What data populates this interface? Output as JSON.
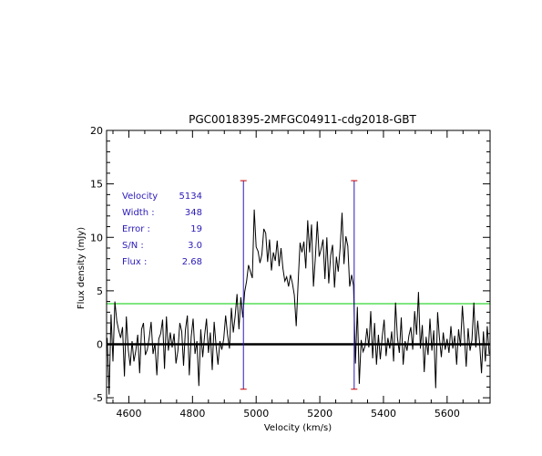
{
  "chart_data": {
    "type": "line",
    "title": "PGC0018395-2MFGC04911-cdg2018-GBT",
    "xlabel": "Velocity (km/s)",
    "ylabel": "Flux density (mJy)",
    "xlim": [
      4530,
      5735
    ],
    "ylim": [
      -5.5,
      20
    ],
    "xticks": [
      4600,
      4800,
      5000,
      5200,
      5400,
      5600
    ],
    "yticks": [
      -5,
      0,
      5,
      10,
      15,
      20
    ],
    "grid": false,
    "info_labels": [
      "Velocity",
      "Width :",
      "Error :",
      "S/N :",
      "Flux :"
    ],
    "info_values": [
      "5134",
      "348",
      "19",
      "3.0",
      "2.68"
    ],
    "reference_lines": {
      "zero_level": 0,
      "noise_level": 3.8,
      "noise_color": "#00cc00",
      "zero_color": "#000000"
    },
    "markers": {
      "color": "#2a1ab8",
      "cap_color": "#cc0000",
      "lines": [
        {
          "x": 4960,
          "y_top": 15.3,
          "y_bottom": -4.2
        },
        {
          "x": 5308,
          "y_top": 15.3,
          "y_bottom": -4.2
        }
      ]
    },
    "spectrum": [
      [
        4532,
        0.6
      ],
      [
        4538,
        -4.7
      ],
      [
        4544,
        2.8
      ],
      [
        4550,
        -1.6
      ],
      [
        4556,
        4.0
      ],
      [
        4562,
        2.2
      ],
      [
        4568,
        1.3
      ],
      [
        4574,
        0.6
      ],
      [
        4580,
        1.6
      ],
      [
        4586,
        -3.0
      ],
      [
        4592,
        2.6
      ],
      [
        4598,
        -0.5
      ],
      [
        4604,
        -2.0
      ],
      [
        4610,
        0.3
      ],
      [
        4616,
        -1.6
      ],
      [
        4622,
        -0.6
      ],
      [
        4628,
        0.9
      ],
      [
        4634,
        -2.7
      ],
      [
        4640,
        1.4
      ],
      [
        4646,
        2.0
      ],
      [
        4652,
        -1.0
      ],
      [
        4658,
        -0.5
      ],
      [
        4664,
        0.6
      ],
      [
        4670,
        2.1
      ],
      [
        4676,
        -0.9
      ],
      [
        4682,
        0.1
      ],
      [
        4688,
        -2.9
      ],
      [
        4694,
        0.5
      ],
      [
        4700,
        1.0
      ],
      [
        4706,
        2.3
      ],
      [
        4712,
        -2.3
      ],
      [
        4718,
        2.6
      ],
      [
        4724,
        -0.6
      ],
      [
        4730,
        1.1
      ],
      [
        4736,
        -0.3
      ],
      [
        4742,
        1.0
      ],
      [
        4748,
        -1.8
      ],
      [
        4754,
        -0.6
      ],
      [
        4760,
        2.0
      ],
      [
        4766,
        1.2
      ],
      [
        4772,
        -2.0
      ],
      [
        4778,
        1.4
      ],
      [
        4784,
        2.7
      ],
      [
        4790,
        -2.9
      ],
      [
        4796,
        0.7
      ],
      [
        4802,
        2.4
      ],
      [
        4808,
        -0.9
      ],
      [
        4814,
        0.3
      ],
      [
        4820,
        -3.9
      ],
      [
        4826,
        1.4
      ],
      [
        4832,
        -1.2
      ],
      [
        4838,
        0.8
      ],
      [
        4844,
        2.4
      ],
      [
        4850,
        -0.8
      ],
      [
        4856,
        1.1
      ],
      [
        4862,
        -2.4
      ],
      [
        4868,
        2.1
      ],
      [
        4874,
        -0.1
      ],
      [
        4880,
        -1.9
      ],
      [
        4886,
        0.3
      ],
      [
        4892,
        -0.5
      ],
      [
        4898,
        0.5
      ],
      [
        4904,
        2.7
      ],
      [
        4910,
        0.9
      ],
      [
        4916,
        -0.4
      ],
      [
        4922,
        3.4
      ],
      [
        4928,
        1.1
      ],
      [
        4934,
        2.6
      ],
      [
        4940,
        4.7
      ],
      [
        4946,
        1.4
      ],
      [
        4952,
        4.4
      ],
      [
        4958,
        2.5
      ],
      [
        4964,
        4.9
      ],
      [
        4970,
        5.9
      ],
      [
        4976,
        7.4
      ],
      [
        4982,
        6.8
      ],
      [
        4988,
        6.2
      ],
      [
        4994,
        12.6
      ],
      [
        5000,
        9.1
      ],
      [
        5006,
        8.7
      ],
      [
        5012,
        7.6
      ],
      [
        5018,
        8.4
      ],
      [
        5024,
        10.8
      ],
      [
        5030,
        10.4
      ],
      [
        5036,
        7.7
      ],
      [
        5042,
        9.8
      ],
      [
        5048,
        6.9
      ],
      [
        5054,
        8.6
      ],
      [
        5060,
        7.8
      ],
      [
        5066,
        9.7
      ],
      [
        5072,
        7.3
      ],
      [
        5078,
        9.0
      ],
      [
        5084,
        7.1
      ],
      [
        5090,
        5.9
      ],
      [
        5096,
        6.3
      ],
      [
        5102,
        5.4
      ],
      [
        5108,
        6.5
      ],
      [
        5114,
        5.7
      ],
      [
        5120,
        4.6
      ],
      [
        5126,
        1.7
      ],
      [
        5132,
        5.8
      ],
      [
        5138,
        9.5
      ],
      [
        5144,
        8.6
      ],
      [
        5150,
        9.6
      ],
      [
        5156,
        7.1
      ],
      [
        5162,
        11.6
      ],
      [
        5168,
        8.6
      ],
      [
        5174,
        11.2
      ],
      [
        5180,
        5.4
      ],
      [
        5186,
        8.1
      ],
      [
        5192,
        11.5
      ],
      [
        5198,
        8.2
      ],
      [
        5204,
        8.9
      ],
      [
        5210,
        9.8
      ],
      [
        5216,
        6.1
      ],
      [
        5222,
        10.0
      ],
      [
        5228,
        5.7
      ],
      [
        5234,
        8.3
      ],
      [
        5240,
        9.3
      ],
      [
        5246,
        5.3
      ],
      [
        5252,
        8.2
      ],
      [
        5258,
        6.8
      ],
      [
        5264,
        9.0
      ],
      [
        5270,
        12.3
      ],
      [
        5276,
        7.5
      ],
      [
        5282,
        10.1
      ],
      [
        5288,
        9.2
      ],
      [
        5294,
        5.4
      ],
      [
        5300,
        6.5
      ],
      [
        5306,
        5.5
      ],
      [
        5312,
        -1.8
      ],
      [
        5318,
        3.5
      ],
      [
        5324,
        -3.7
      ],
      [
        5330,
        0.4
      ],
      [
        5336,
        -0.7
      ],
      [
        5342,
        -0.2
      ],
      [
        5348,
        1.5
      ],
      [
        5354,
        -0.3
      ],
      [
        5360,
        3.1
      ],
      [
        5366,
        -1.3
      ],
      [
        5372,
        2.0
      ],
      [
        5378,
        -1.9
      ],
      [
        5384,
        0.9
      ],
      [
        5390,
        -1.4
      ],
      [
        5396,
        0.7
      ],
      [
        5402,
        2.3
      ],
      [
        5408,
        -1.1
      ],
      [
        5414,
        0.6
      ],
      [
        5420,
        -0.4
      ],
      [
        5426,
        1.2
      ],
      [
        5432,
        -1.6
      ],
      [
        5438,
        3.9
      ],
      [
        5444,
        0.6
      ],
      [
        5450,
        -0.8
      ],
      [
        5456,
        2.5
      ],
      [
        5462,
        -1.9
      ],
      [
        5468,
        0.3
      ],
      [
        5474,
        -0.6
      ],
      [
        5480,
        0.8
      ],
      [
        5486,
        1.6
      ],
      [
        5492,
        -0.5
      ],
      [
        5498,
        3.1
      ],
      [
        5504,
        0.9
      ],
      [
        5510,
        4.9
      ],
      [
        5516,
        -0.4
      ],
      [
        5522,
        1.8
      ],
      [
        5528,
        -2.6
      ],
      [
        5534,
        0.7
      ],
      [
        5540,
        -1.0
      ],
      [
        5546,
        2.4
      ],
      [
        5552,
        -0.6
      ],
      [
        5558,
        1.3
      ],
      [
        5564,
        -4.1
      ],
      [
        5570,
        3.0
      ],
      [
        5576,
        0.6
      ],
      [
        5582,
        -1.2
      ],
      [
        5588,
        1.1
      ],
      [
        5594,
        -0.5
      ],
      [
        5600,
        0.5
      ],
      [
        5606,
        -0.8
      ],
      [
        5612,
        1.7
      ],
      [
        5618,
        -0.4
      ],
      [
        5624,
        0.8
      ],
      [
        5630,
        -1.9
      ],
      [
        5636,
        1.4
      ],
      [
        5642,
        -0.2
      ],
      [
        5648,
        3.6
      ],
      [
        5654,
        0.9
      ],
      [
        5660,
        -2.1
      ],
      [
        5666,
        1.5
      ],
      [
        5672,
        -0.6
      ],
      [
        5678,
        0.4
      ],
      [
        5684,
        3.9
      ],
      [
        5690,
        -0.3
      ],
      [
        5696,
        2.2
      ],
      [
        5702,
        0.1
      ],
      [
        5708,
        -2.7
      ],
      [
        5714,
        1.2
      ],
      [
        5720,
        -1.6
      ],
      [
        5726,
        1.7
      ],
      [
        5732,
        -0.9
      ]
    ]
  }
}
